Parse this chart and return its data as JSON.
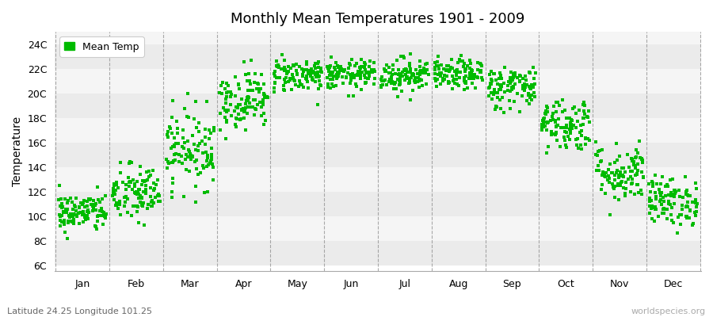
{
  "title": "Monthly Mean Temperatures 1901 - 2009",
  "ylabel": "Temperature",
  "dot_color": "#00bb00",
  "legend_label": "Mean Temp",
  "subtitle": "Latitude 24.25 Longitude 101.25",
  "watermark": "worldspecies.org",
  "ytick_labels": [
    "6C",
    "8C",
    "10C",
    "12C",
    "14C",
    "16C",
    "18C",
    "20C",
    "22C",
    "24C"
  ],
  "ytick_values": [
    6,
    8,
    10,
    12,
    14,
    16,
    18,
    20,
    22,
    24
  ],
  "ylim": [
    5.5,
    25.0
  ],
  "months": [
    "Jan",
    "Feb",
    "Mar",
    "Apr",
    "May",
    "Jun",
    "Jul",
    "Aug",
    "Sep",
    "Oct",
    "Nov",
    "Dec"
  ],
  "month_means": [
    10.3,
    11.8,
    15.5,
    19.5,
    21.5,
    21.5,
    21.5,
    21.5,
    20.5,
    17.5,
    13.5,
    11.2
  ],
  "month_stds": [
    0.8,
    1.2,
    1.6,
    1.2,
    0.7,
    0.6,
    0.7,
    0.6,
    0.9,
    1.1,
    1.2,
    1.0
  ],
  "n_years": 109,
  "seed": 42,
  "marker_size": 8,
  "dpi": 100,
  "figsize": [
    9.0,
    4.0
  ],
  "band_colors": [
    "#ebebeb",
    "#f5f5f5"
  ]
}
